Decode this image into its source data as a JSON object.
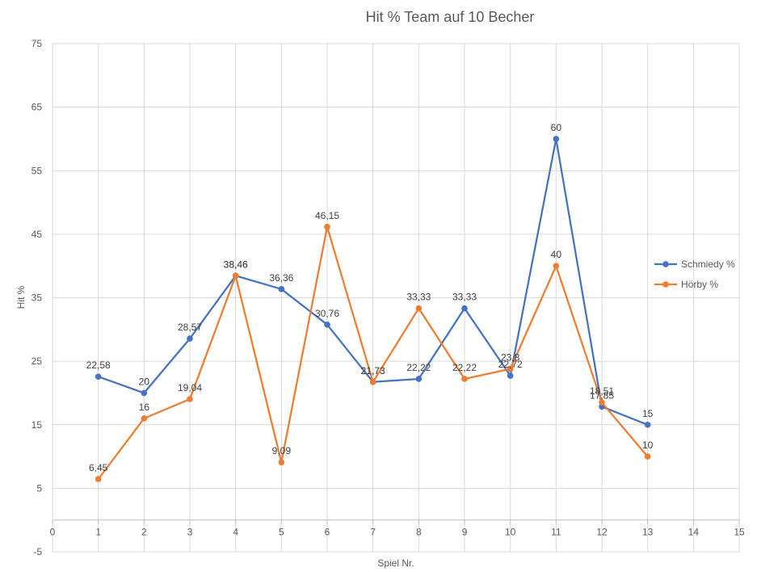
{
  "chart_data": {
    "type": "line",
    "title": "Hit % Team auf 10 Becher",
    "xlabel": "Spiel Nr.",
    "ylabel": "Hit %",
    "xlim": [
      0,
      15
    ],
    "ylim": [
      -5,
      75
    ],
    "xticks": [
      0,
      1,
      2,
      3,
      4,
      5,
      6,
      7,
      8,
      9,
      10,
      11,
      12,
      13,
      14,
      15
    ],
    "yticks": [
      -5,
      5,
      15,
      25,
      35,
      45,
      55,
      65,
      75
    ],
    "grid": true,
    "legend_position": "right",
    "series": [
      {
        "name": "Schmiedy %",
        "color": "#4472c4",
        "x": [
          1,
          2,
          3,
          4,
          5,
          6,
          7,
          8,
          9,
          10,
          11,
          12,
          13
        ],
        "values": [
          22.58,
          20,
          28.57,
          38.46,
          36.36,
          30.76,
          21.73,
          22.22,
          33.33,
          22.72,
          60,
          17.85,
          15
        ],
        "labels": [
          "22,58",
          "20",
          "28,57",
          "38,46",
          "36,36",
          "30,76",
          "21,73",
          "22,22",
          "33,33",
          "22,72",
          "60",
          "17,85",
          "15"
        ]
      },
      {
        "name": "Hörby %",
        "color": "#ed7d31",
        "x": [
          1,
          2,
          3,
          4,
          5,
          6,
          7,
          8,
          9,
          10,
          11,
          12,
          13
        ],
        "values": [
          6.45,
          16,
          19.04,
          38.46,
          9.09,
          46.15,
          21.73,
          33.33,
          22.22,
          23.8,
          40,
          18.51,
          10
        ],
        "labels": [
          "6,45",
          "16",
          "19,04",
          "38,46",
          "9,09",
          "46,15",
          "21,73",
          "33,33",
          "22,22",
          "23,8",
          "40",
          "18,51",
          "10"
        ]
      }
    ]
  }
}
